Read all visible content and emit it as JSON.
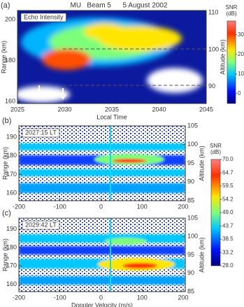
{
  "chart_data": [
    {
      "type": "heatmap",
      "panel_label": "(a)",
      "title": "MU   Beam 5      5 August 2002",
      "annotation": "Echo Intensity",
      "x_label": "Local Time",
      "y_label": "Range (km)",
      "y2_label": "Altitude (km)",
      "xlim": [
        2025,
        2045
      ],
      "xticks": [
        2025,
        2030,
        2035,
        2040,
        2045
      ],
      "ylim": [
        159,
        204.4
      ],
      "yticks": [
        160,
        180,
        200
      ],
      "y2lim": [
        85.4,
        110.6
      ],
      "y2ticks": [
        90,
        100,
        110
      ],
      "colorbar": {
        "label": "SNR",
        "units": "(dB)",
        "lim": [
          -5,
          37
        ],
        "ticks": [
          0,
          10,
          20,
          30
        ]
      }
    },
    {
      "type": "heatmap",
      "panel_label": "(b)",
      "annotation": "2027:15 LT",
      "y_label": "Range (km)",
      "y2_label": "Altitude (km)",
      "xlim": [
        -200,
        205
      ],
      "xticks": [
        -200,
        -100,
        0,
        100,
        200
      ],
      "ylim": [
        156,
        196
      ],
      "yticks": [
        160,
        170,
        180,
        190
      ],
      "y2lim": [
        85,
        105
      ],
      "y2ticks": [
        85,
        90,
        95,
        100,
        105
      ],
      "colorbar": {
        "label": "SNR",
        "units": "(dB)",
        "lim": [
          28,
          70
        ],
        "ticks": [
          {
            "value": 28,
            "label": "28.0"
          },
          {
            "value": 33.2,
            "label": "33.2"
          },
          {
            "value": 38.5,
            "label": "38.5"
          },
          {
            "value": 43.7,
            "label": "43.7"
          },
          {
            "value": 49,
            "label": "49.0"
          },
          {
            "value": 54.2,
            "label": "54.2"
          },
          {
            "value": 59.5,
            "label": "59.5"
          },
          {
            "value": 64.7,
            "label": "64.7"
          },
          {
            "value": 70,
            "label": "70.0"
          }
        ]
      }
    },
    {
      "type": "heatmap",
      "panel_label": "(c)",
      "annotation": "2029:42 LT",
      "x_label": "Doppler Velocity (m/s)",
      "y_label": "Range (km)",
      "y2_label": "Altitude (km)",
      "xlim": [
        -200,
        205
      ],
      "xticks": [
        -200,
        -100,
        0,
        100,
        200
      ],
      "ylim": [
        156,
        196
      ],
      "yticks": [
        160,
        170,
        180,
        190
      ],
      "y2lim": [
        85,
        105
      ],
      "y2ticks": [
        85,
        90,
        95,
        100,
        105
      ]
    }
  ]
}
